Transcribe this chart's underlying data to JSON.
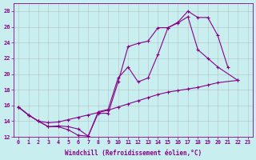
{
  "xlabel": "Windchill (Refroidissement éolien,°C)",
  "bg_color": "#c8eef0",
  "line_color": "#880088",
  "grid_color": "#b0b0b0",
  "xlim": [
    -0.5,
    23.5
  ],
  "ylim": [
    12,
    29
  ],
  "xticks": [
    0,
    1,
    2,
    3,
    4,
    5,
    6,
    7,
    8,
    9,
    10,
    11,
    12,
    13,
    14,
    15,
    16,
    17,
    18,
    19,
    20,
    21,
    22,
    23
  ],
  "yticks": [
    12,
    14,
    16,
    18,
    20,
    22,
    24,
    26,
    28
  ],
  "line1_x": [
    0,
    1,
    2,
    3,
    4,
    5,
    6,
    7,
    8,
    9,
    10,
    11,
    12,
    13,
    14,
    15,
    16,
    17,
    18,
    19,
    20,
    21
  ],
  "line1_y": [
    15.8,
    14.8,
    14.0,
    13.3,
    13.3,
    12.9,
    12.2,
    12.1,
    15.0,
    15.0,
    19.0,
    23.5,
    23.9,
    24.2,
    25.9,
    25.9,
    26.6,
    28.0,
    27.2,
    27.2,
    24.9,
    20.9
  ],
  "line2_x": [
    0,
    1,
    2,
    3,
    4,
    5,
    6,
    7,
    8,
    9,
    10,
    11,
    12,
    13,
    14,
    15,
    16,
    17,
    18,
    19,
    20,
    22
  ],
  "line2_y": [
    15.8,
    14.8,
    14.0,
    13.3,
    13.4,
    13.3,
    13.0,
    12.1,
    15.2,
    15.5,
    19.5,
    20.9,
    19.0,
    19.5,
    22.5,
    25.9,
    26.5,
    27.3,
    23.1,
    22.0,
    20.9,
    19.2
  ],
  "line3_x": [
    0,
    1,
    2,
    3,
    4,
    5,
    6,
    7,
    8,
    9,
    10,
    11,
    12,
    13,
    14,
    15,
    16,
    17,
    18,
    19,
    20,
    22
  ],
  "line3_y": [
    15.8,
    14.8,
    14.0,
    13.8,
    13.9,
    14.2,
    14.5,
    14.8,
    15.1,
    15.4,
    15.8,
    16.2,
    16.6,
    17.0,
    17.4,
    17.7,
    17.9,
    18.1,
    18.3,
    18.6,
    18.9,
    19.2
  ]
}
